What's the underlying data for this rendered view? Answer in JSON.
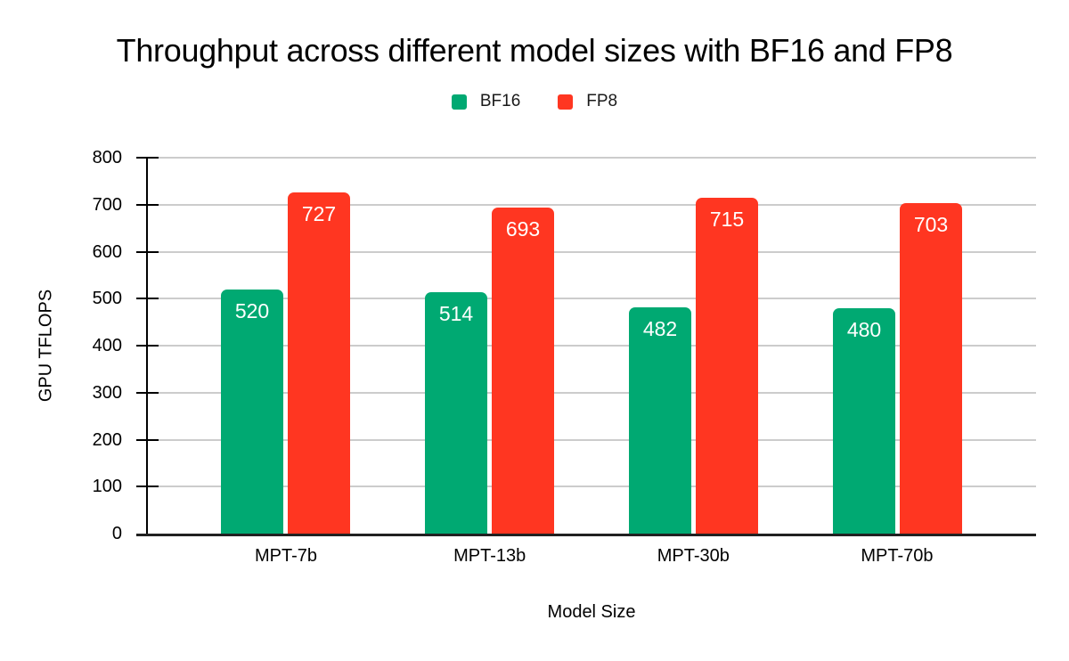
{
  "chart_data": {
    "type": "bar",
    "title": "Throughput across different model sizes with BF16 and FP8",
    "categories": [
      "MPT-7b",
      "MPT-13b",
      "MPT-30b",
      "MPT-70b"
    ],
    "series": [
      {
        "name": "BF16",
        "color": "#00A972",
        "values": [
          520,
          514,
          482,
          480
        ]
      },
      {
        "name": "FP8",
        "color": "#FF3621",
        "values": [
          727,
          693,
          715,
          703
        ]
      }
    ],
    "xlabel": "Model Size",
    "ylabel": "GPU TFLOPS",
    "ylim": [
      0,
      800
    ],
    "yticks": [
      0,
      100,
      200,
      300,
      400,
      500,
      600,
      700,
      800
    ],
    "grid": true,
    "legend_position": "top",
    "bar_value_labels_inside_top": true,
    "colors": {
      "background": "#ffffff",
      "gridline": "#cccccc",
      "axis": "#000000",
      "baseline": "#212121",
      "bar_value_text": "#ffffff",
      "text": "#000000"
    }
  }
}
